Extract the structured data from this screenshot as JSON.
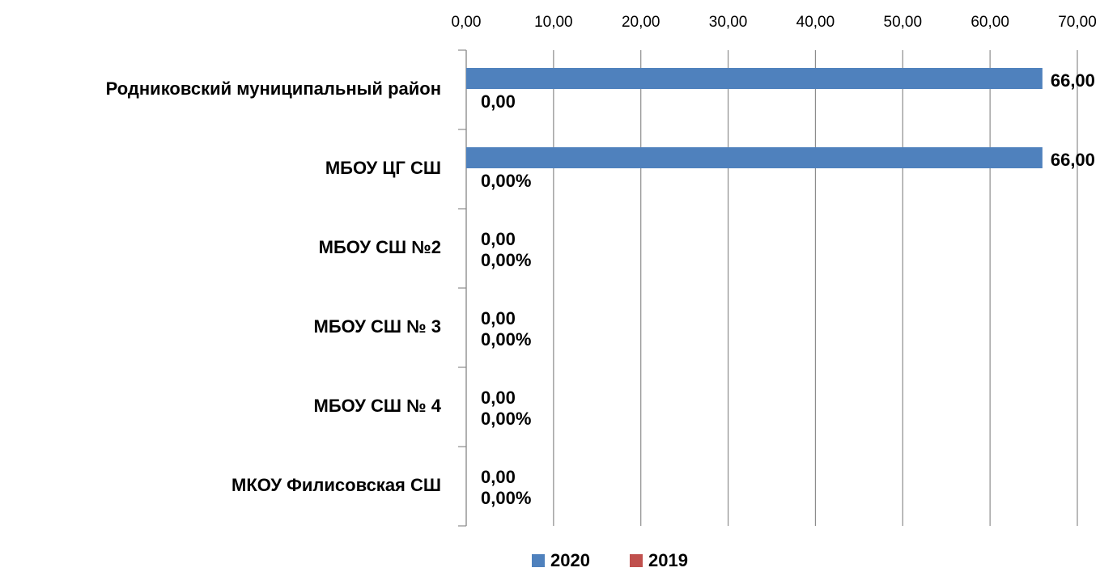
{
  "chart_data": {
    "type": "bar",
    "orientation": "horizontal",
    "categories": [
      "Родниковский муниципальный район",
      "МБОУ ЦГ СШ",
      "МБОУ СШ №2",
      "МБОУ СШ № 3",
      "МБОУ СШ № 4",
      "МКОУ Филисовская СШ"
    ],
    "series": [
      {
        "name": "2020",
        "color": "#4f81bd",
        "values": [
          66,
          66,
          0,
          0,
          0,
          0
        ],
        "value_labels": [
          "66,00",
          "66,00",
          "0,00",
          "0,00",
          "0,00",
          "0,00"
        ]
      },
      {
        "name": "2019",
        "color": "#c0504d",
        "values": [
          0,
          0,
          0,
          0,
          0,
          0
        ],
        "value_labels": [
          "0,00",
          "0,00%",
          "0,00%",
          "0,00%",
          "0,00%",
          "0,00%"
        ]
      }
    ],
    "xlim": [
      0,
      70
    ],
    "xticks": [
      {
        "value": 0,
        "label": "0,00"
      },
      {
        "value": 10,
        "label": "10,00"
      },
      {
        "value": 20,
        "label": "20,00"
      },
      {
        "value": 30,
        "label": "30,00"
      },
      {
        "value": 40,
        "label": "40,00"
      },
      {
        "value": 50,
        "label": "50,00"
      },
      {
        "value": 60,
        "label": "60,00"
      },
      {
        "value": 70,
        "label": "70,00"
      }
    ],
    "grid": true,
    "legend": "bottom"
  }
}
